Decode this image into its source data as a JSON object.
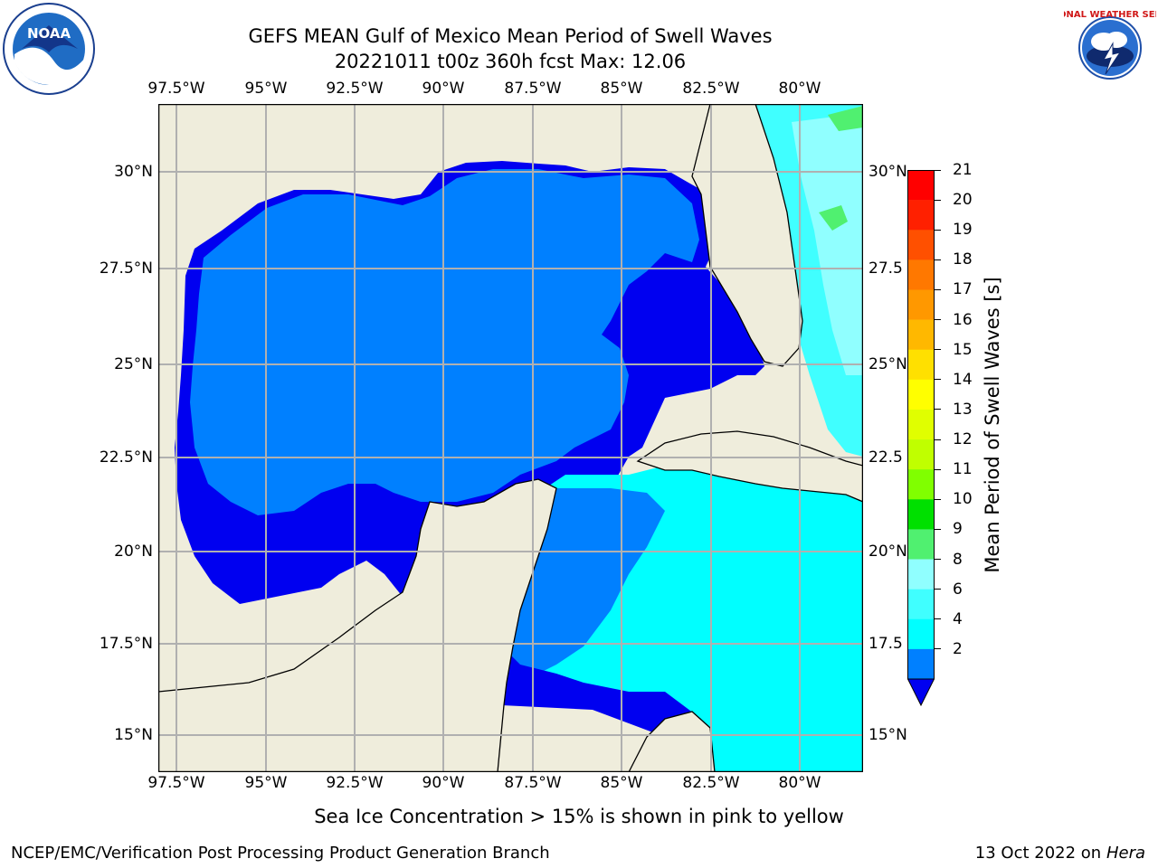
{
  "title": {
    "line1": "GEFS MEAN Gulf of Mexico Mean Period of Swell Waves",
    "line2": "20221011 t00z 360h fcst   Max: 12.06"
  },
  "logos": {
    "left_text": "NOAA",
    "right_text": "NATIONAL WEATHER SERVICE"
  },
  "map": {
    "longitude_labels": [
      "97.5°W",
      "95°W",
      "92.5°W",
      "90°W",
      "87.5°W",
      "85°W",
      "82.5°W",
      "80°W"
    ],
    "latitude_labels_left": [
      "30°N",
      "27.5°N",
      "25°N",
      "22.5°N",
      "20°N",
      "17.5°N",
      "15°N"
    ],
    "latitude_labels_right": [
      "30°N",
      "27.5",
      "25°N",
      "22.5",
      "20°N",
      "17.5",
      "15°N"
    ],
    "colors": {
      "land": "#efeddc",
      "coast": "#000000",
      "grid": "#b0b0b0",
      "ocean_under_2": "#0000f0",
      "ocean_2_4": "#0080ff",
      "ocean_4_6": "#00ffff",
      "ocean_6_8": "#40ffff",
      "ocean_8_9": "#90ffff",
      "ocean_9_10": "#50f070",
      "ocean_10_11": "#00e000"
    }
  },
  "colorbar": {
    "label": "Mean Period of Swell Waves [s]",
    "ticks": [
      "21",
      "20",
      "19",
      "18",
      "17",
      "16",
      "15",
      "14",
      "13",
      "12",
      "11",
      "10",
      "9",
      "8",
      "6",
      "4",
      "2"
    ],
    "bands": [
      "#ff0000",
      "#ff2000",
      "#ff5000",
      "#ff7800",
      "#ff9800",
      "#ffb800",
      "#ffe000",
      "#ffff00",
      "#e0ff00",
      "#c0ff00",
      "#80ff00",
      "#00e000",
      "#50f070",
      "#90ffff",
      "#40ffff",
      "#00ffff",
      "#0080ff"
    ],
    "under_color": "#0000f0"
  },
  "note": "Sea Ice Concentration > 15% is shown in pink to yellow",
  "footer": {
    "left": "NCEP/EMC/Verification Post Processing Product Generation Branch",
    "right_prefix": "13 Oct 2022 on ",
    "right_host": "Hera"
  }
}
